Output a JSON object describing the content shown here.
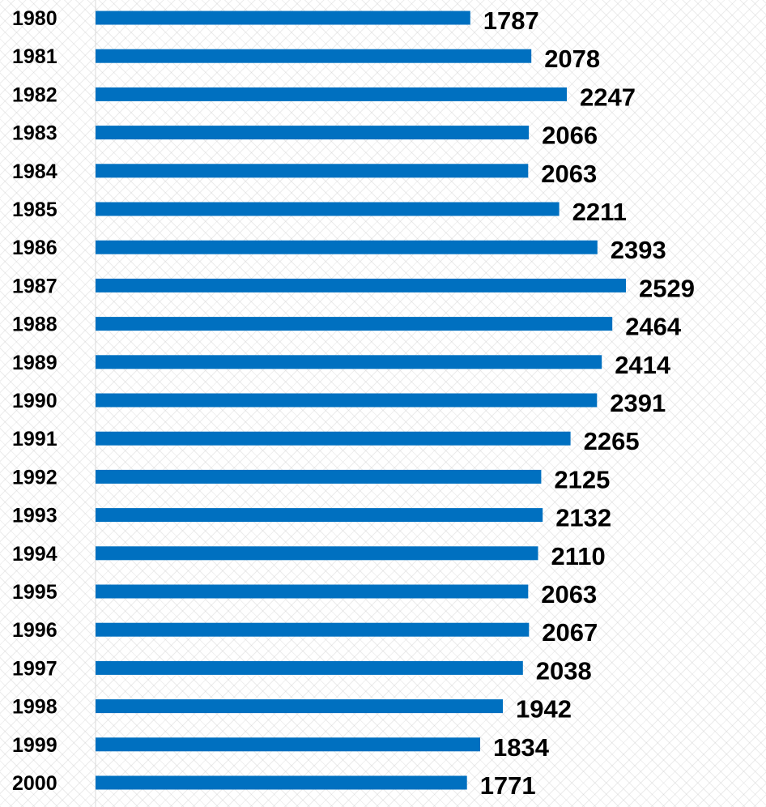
{
  "chart_data": {
    "type": "bar",
    "orientation": "horizontal",
    "categories": [
      "1980",
      "1981",
      "1982",
      "1983",
      "1984",
      "1985",
      "1986",
      "1987",
      "1988",
      "1989",
      "1990",
      "1991",
      "1992",
      "1993",
      "1994",
      "1995",
      "1996",
      "1997",
      "1998",
      "1999",
      "2000"
    ],
    "values": [
      1787,
      2078,
      2247,
      2066,
      2063,
      2211,
      2393,
      2529,
      2464,
      2414,
      2391,
      2265,
      2125,
      2132,
      2110,
      2063,
      2067,
      2038,
      1942,
      1834,
      1771
    ],
    "data_labels": [
      "1787",
      "2078",
      "2247",
      "2066",
      "2063",
      "2211",
      "2393",
      "2529",
      "2464",
      "2414",
      "2391",
      "2265",
      "2125",
      "2132",
      "2110",
      "2063",
      "2067",
      "2038",
      "1942",
      "1834",
      "1771"
    ],
    "title": "",
    "xlabel": "",
    "ylabel": "",
    "xlim": [
      0,
      2529
    ],
    "grid": false,
    "legend": "none",
    "bar_color": "#0070C0",
    "axis_color": "#D9D9D9"
  }
}
